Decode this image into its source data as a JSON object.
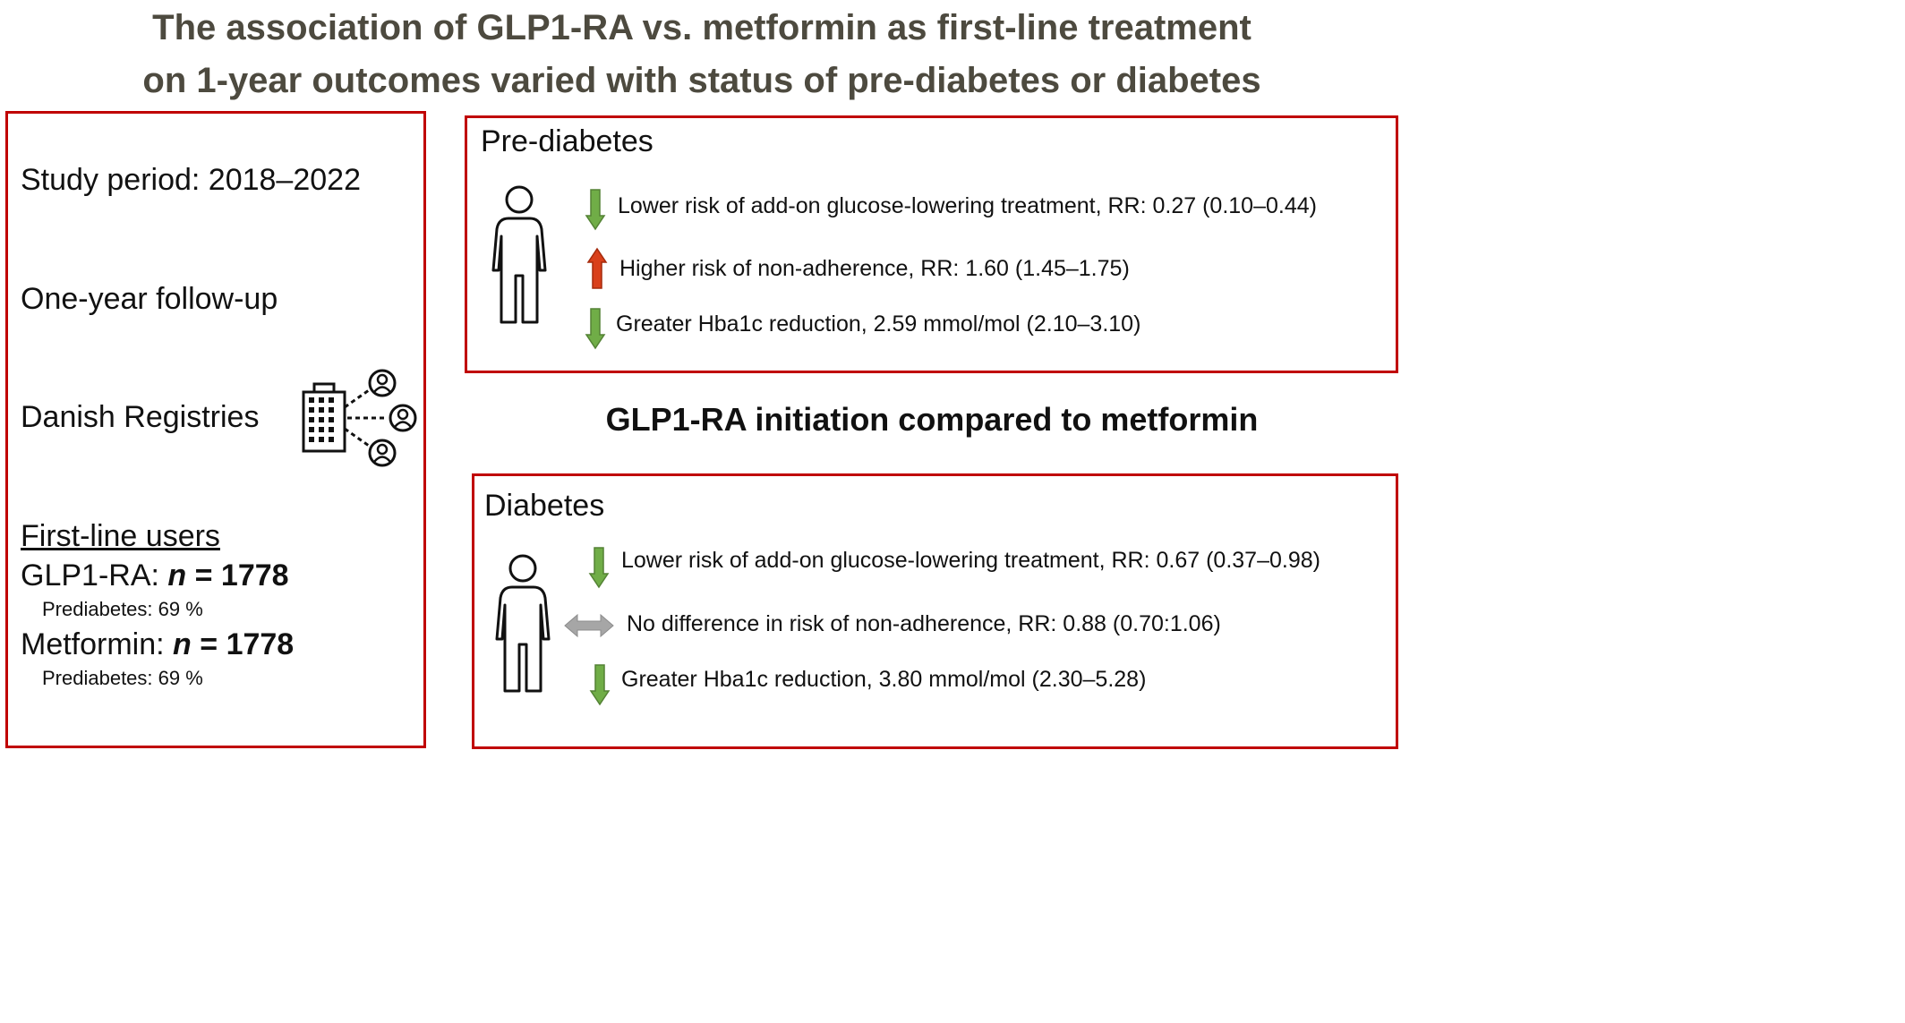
{
  "title": {
    "line1": "The association of GLP1-RA vs. metformin as first-line treatment",
    "line2": "on 1-year outcomes varied with status of pre-diabetes or diabetes"
  },
  "study": {
    "period": "Study period: 2018–2022",
    "followup": "One-year follow-up",
    "registries": "Danish Registries",
    "users_heading": "First-line users",
    "glp1_label": "GLP1-RA: ",
    "glp1_n_symbol": "n",
    "glp1_n_value": " = 1778",
    "glp1_prediabetes": "Prediabetes: 69 %",
    "metformin_label": "Metformin: ",
    "metformin_n_symbol": "n",
    "metformin_n_value": " = 1778",
    "metformin_prediabetes": "Prediabetes: 69 %"
  },
  "comparison_heading": "GLP1-RA initiation compared to metformin",
  "prediabetes": {
    "heading": "Pre-diabetes",
    "outcomes": [
      {
        "text": "Lower risk of add-on glucose-lowering treatment, RR: 0.27 (0.10–0.44)",
        "direction": "down",
        "color": "#70ad47"
      },
      {
        "text": "Higher risk of non-adherence, RR: 1.60 (1.45–1.75)",
        "direction": "up",
        "color": "#d9401b"
      },
      {
        "text": "Greater Hba1c reduction, 2.59 mmol/mol (2.10–3.10)",
        "direction": "down",
        "color": "#70ad47"
      }
    ]
  },
  "diabetes": {
    "heading": "Diabetes",
    "outcomes": [
      {
        "text": "Lower risk of add-on glucose-lowering treatment, RR: 0.67 (0.37–0.98)",
        "direction": "down",
        "color": "#70ad47"
      },
      {
        "text": "No difference in risk of non-adherence, RR: 0.88 (0.70:1.06)",
        "direction": "both",
        "color": "#a6a6a6"
      },
      {
        "text": "Greater Hba1c reduction, 3.80 mmol/mol (2.30–5.28)",
        "direction": "down",
        "color": "#70ad47"
      }
    ]
  },
  "colors": {
    "box_border": "#c00000",
    "title": "#4d4a3f"
  },
  "icons": [
    "person-icon",
    "building-icon",
    "user-circle-icon",
    "arrow-down-icon",
    "arrow-up-icon",
    "double-arrow-icon"
  ]
}
